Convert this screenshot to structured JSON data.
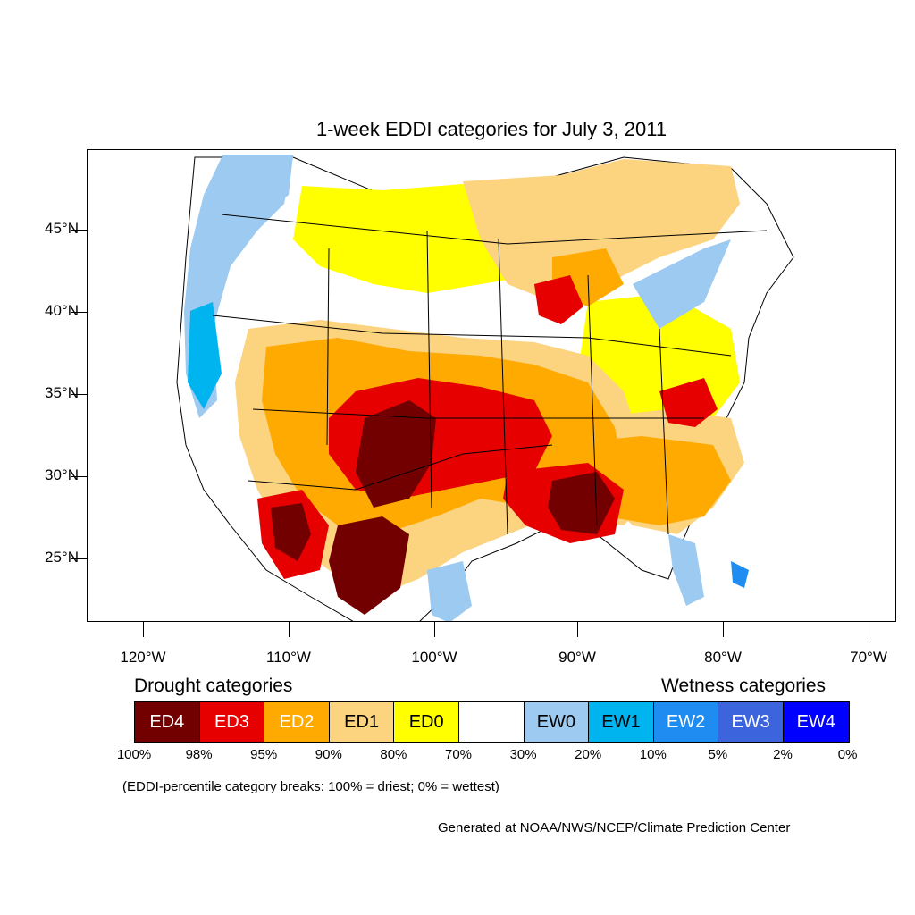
{
  "title": "1-week EDDI categories for July 3, 2011",
  "axes": {
    "lat_labels": [
      "45°N",
      "40°N",
      "35°N",
      "30°N",
      "25°N"
    ],
    "lon_labels": [
      "120°W",
      "110°W",
      "100°W",
      "90°W",
      "80°W",
      "70°W"
    ]
  },
  "legend": {
    "drought_heading": "Drought categories",
    "wetness_heading": "Wetness categories",
    "categories": [
      {
        "label": "ED4",
        "color": "#730000",
        "text_color": "#ffffff"
      },
      {
        "label": "ED3",
        "color": "#e60000",
        "text_color": "#ffffff"
      },
      {
        "label": "ED2",
        "color": "#ffaa00",
        "text_color": "#ffffff"
      },
      {
        "label": "ED1",
        "color": "#fcd37f",
        "text_color": "#000000"
      },
      {
        "label": "ED0",
        "color": "#ffff00",
        "text_color": "#000000"
      },
      {
        "label": "",
        "color": "#ffffff",
        "text_color": "#000000"
      },
      {
        "label": "EW0",
        "color": "#9ccaf0",
        "text_color": "#000000"
      },
      {
        "label": "EW1",
        "color": "#00b4f0",
        "text_color": "#000000"
      },
      {
        "label": "EW2",
        "color": "#1e8cf0",
        "text_color": "#ffffff"
      },
      {
        "label": "EW3",
        "color": "#3c64dc",
        "text_color": "#ffffff"
      },
      {
        "label": "EW4",
        "color": "#0000ff",
        "text_color": "#ffffff"
      }
    ],
    "percentiles": [
      "100%",
      "98%",
      "95%",
      "90%",
      "80%",
      "70%",
      "30%",
      "20%",
      "10%",
      "5%",
      "2%",
      "0%"
    ],
    "note": "(EDDI-percentile category breaks: 100% = driest; 0% = wettest)"
  },
  "credit": "Generated at NOAA/NWS/NCEP/Climate Prediction Center"
}
